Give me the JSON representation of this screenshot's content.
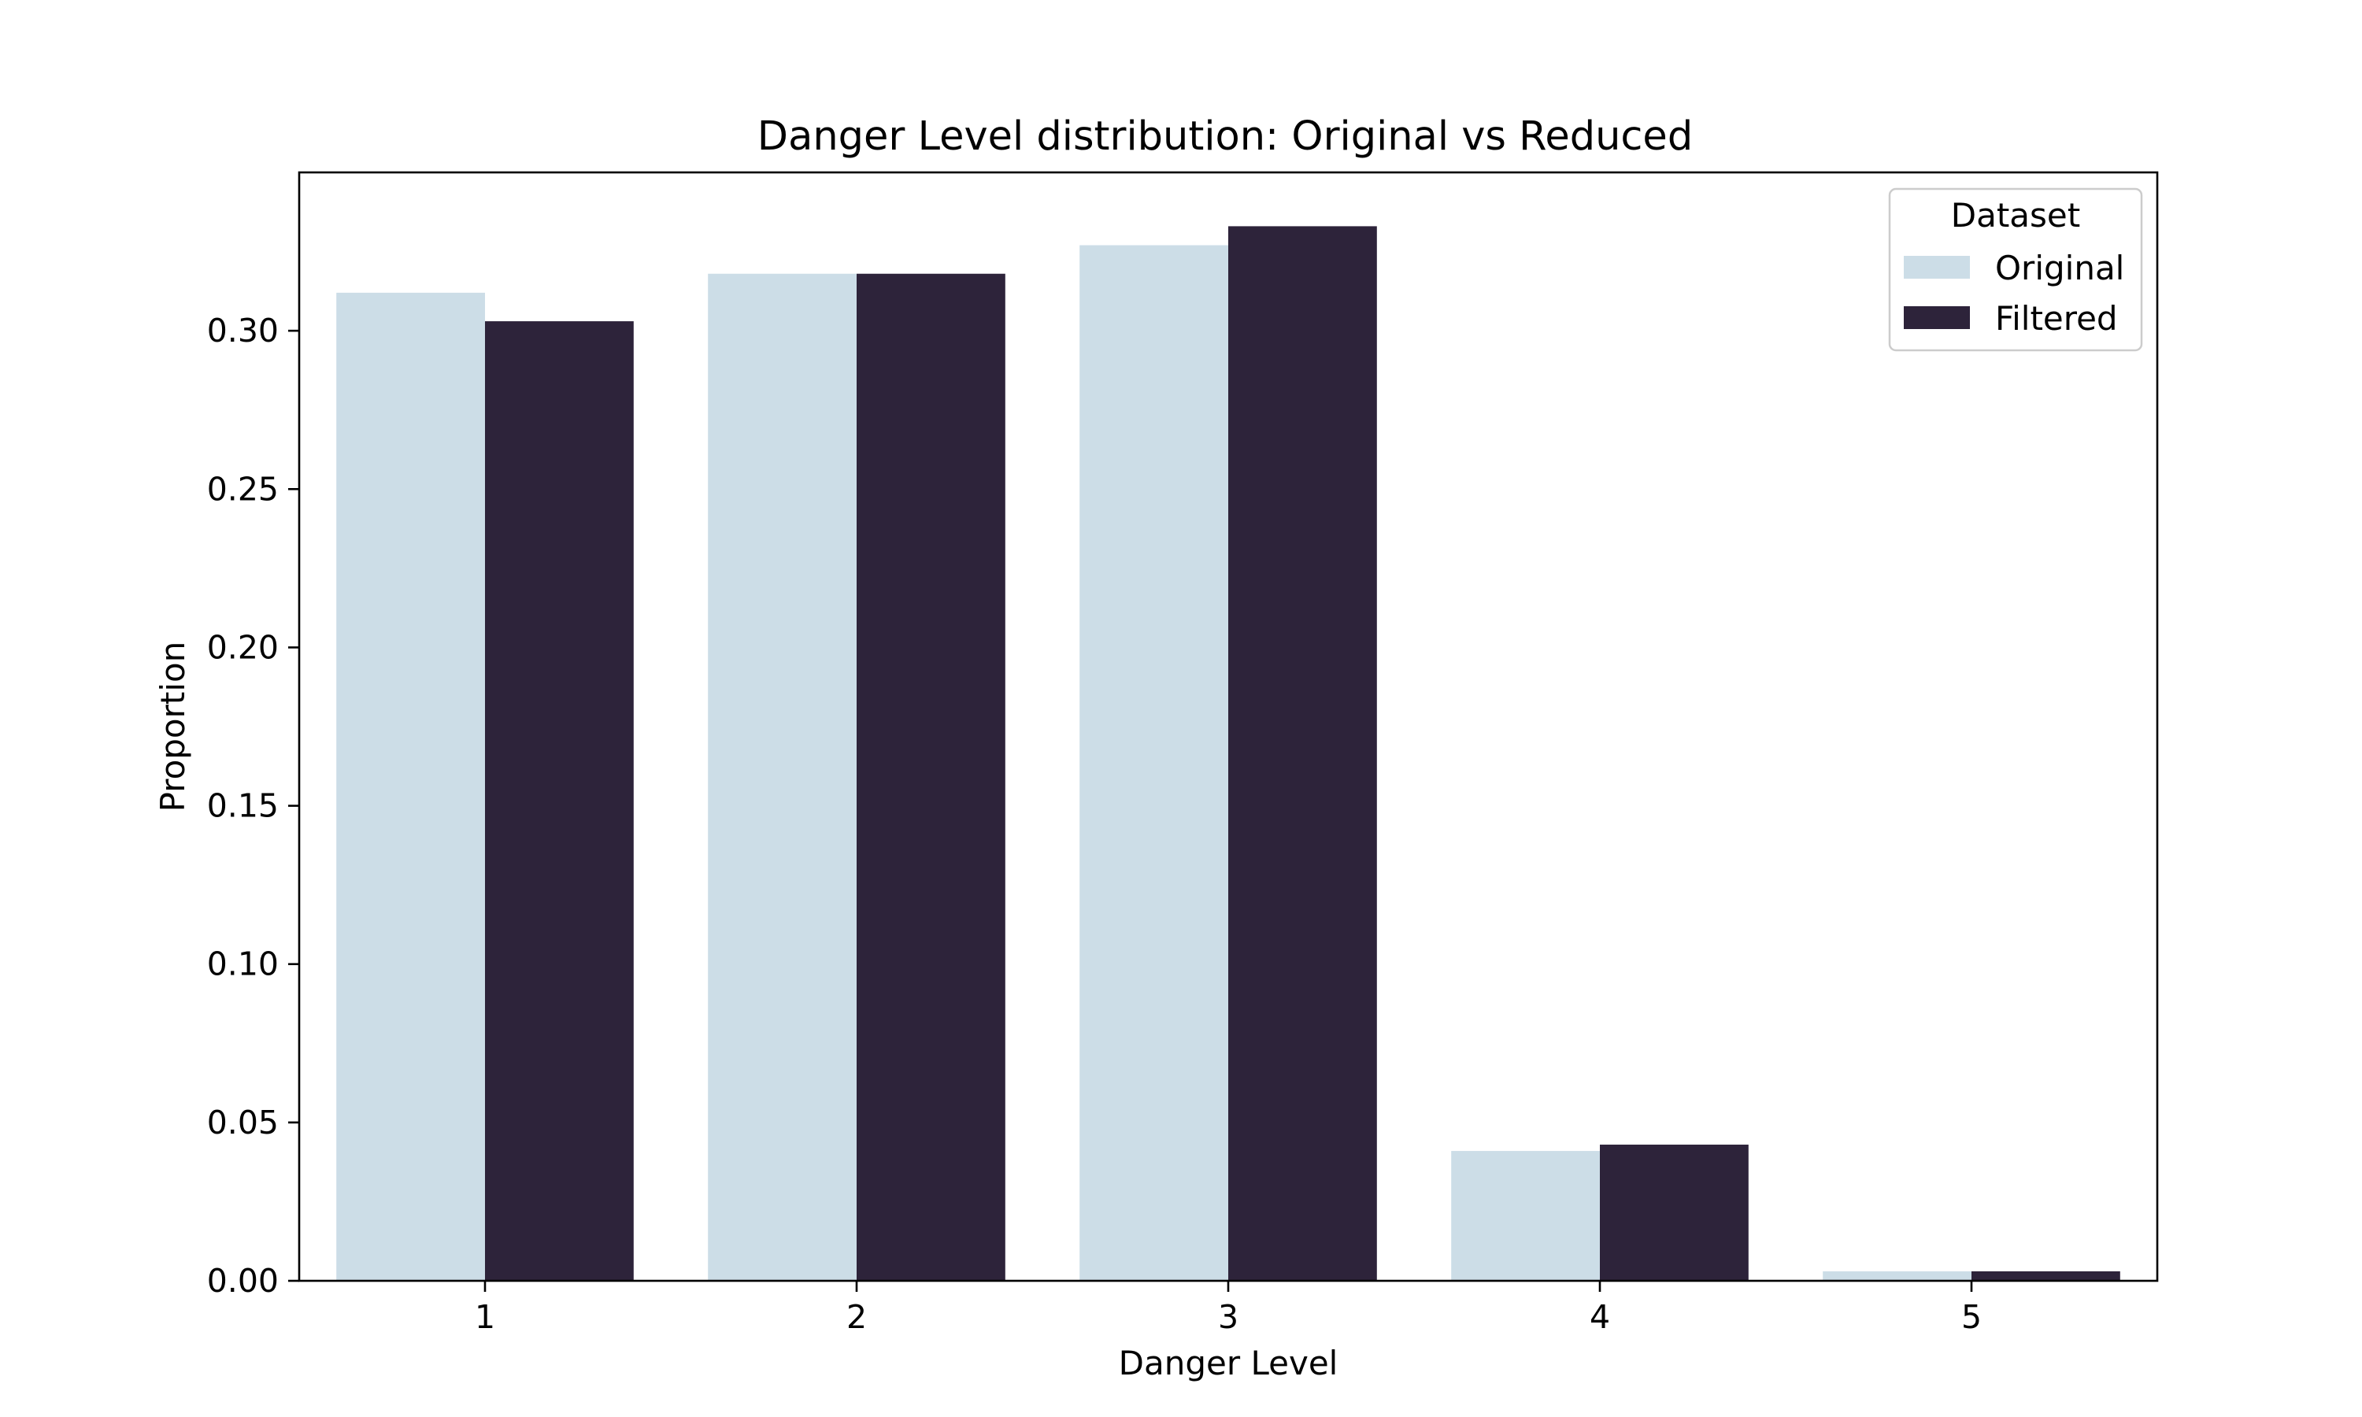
{
  "chart_data": {
    "type": "bar",
    "title": "Danger Level distribution: Original vs Reduced",
    "xlabel": "Danger Level",
    "ylabel": "Proportion",
    "categories": [
      "1",
      "2",
      "3",
      "4",
      "5"
    ],
    "series": [
      {
        "name": "Original",
        "color": "#ccdde7",
        "values": [
          0.312,
          0.318,
          0.327,
          0.041,
          0.003
        ]
      },
      {
        "name": "Filtered",
        "color": "#2d233a",
        "values": [
          0.303,
          0.318,
          0.333,
          0.043,
          0.003
        ]
      }
    ],
    "ylim": [
      0,
      0.35
    ],
    "yticks": [
      "0.00",
      "0.05",
      "0.10",
      "0.15",
      "0.20",
      "0.25",
      "0.30"
    ],
    "grid": false,
    "legend": {
      "title": "Dataset",
      "placement": "top-right"
    }
  }
}
